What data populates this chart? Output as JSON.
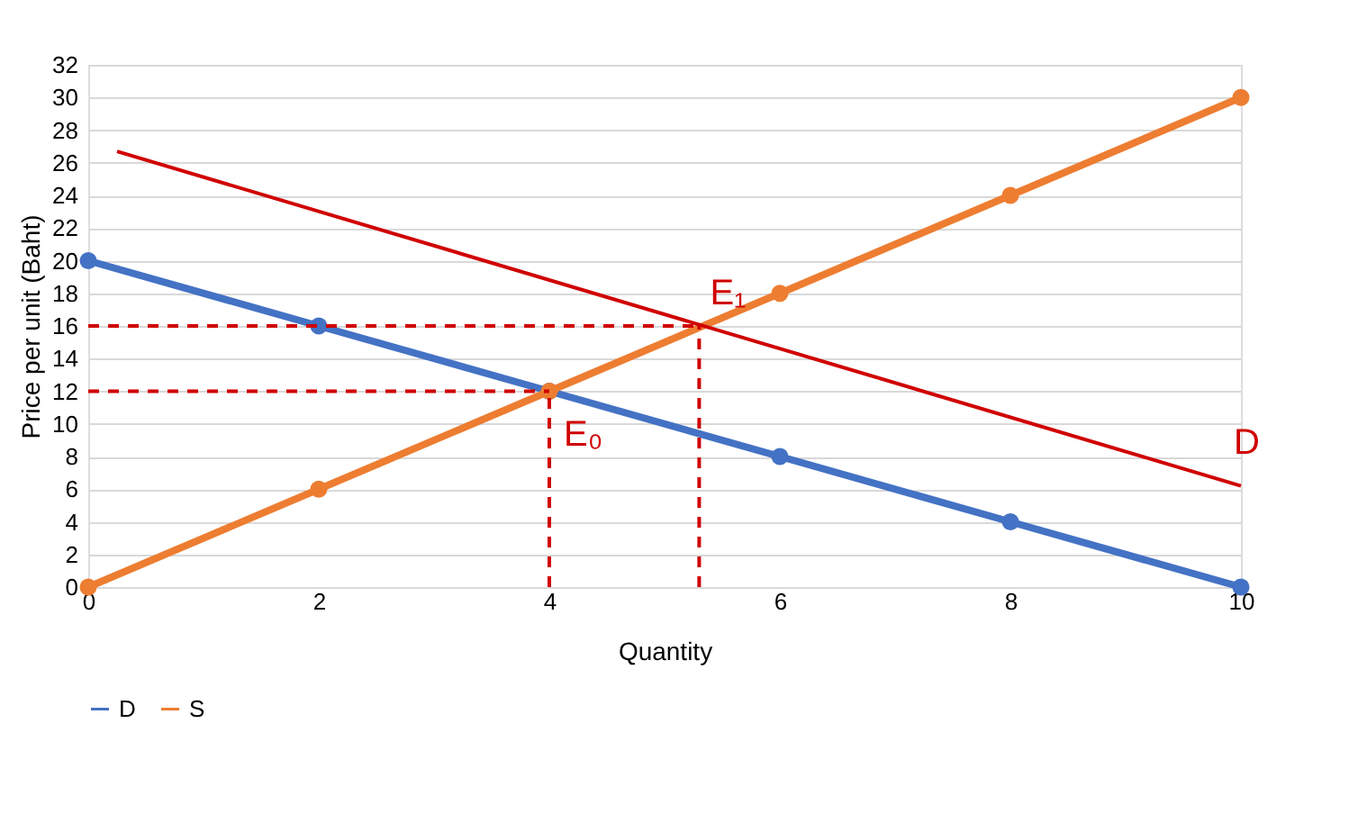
{
  "chart_data": {
    "type": "line",
    "xlabel": "Quantity",
    "ylabel": "Price per unit (Baht)",
    "x": [
      0,
      2,
      4,
      6,
      8,
      10
    ],
    "series": [
      {
        "name": "D",
        "color": "#4472c4",
        "values": [
          20,
          16,
          12,
          8,
          4,
          0
        ],
        "marker": "circle"
      },
      {
        "name": "S",
        "color": "#ed7d31",
        "values": [
          0,
          6,
          12,
          18,
          24,
          30
        ],
        "marker": "circle"
      },
      {
        "color": "#d00000",
        "x": [
          0.25,
          10
        ],
        "values": [
          26.7,
          6.2
        ],
        "marker": "none"
      },
      {
        "color": "#d00000",
        "x": [
          0,
          5.3
        ],
        "values": [
          16,
          16
        ],
        "marker": "none",
        "line_style": "dashed"
      },
      {
        "color": "#d00000",
        "x": [
          0,
          4
        ],
        "values": [
          12,
          12
        ],
        "marker": "none",
        "line_style": "dashed"
      },
      {
        "color": "#d00000",
        "x": [
          4,
          4
        ],
        "values": [
          0,
          12
        ],
        "marker": "none",
        "line_style": "dashed"
      },
      {
        "color": "#d00000",
        "x": [
          5.3,
          5.3
        ],
        "values": [
          0,
          16
        ],
        "marker": "none",
        "line_style": "dashed"
      }
    ],
    "annotations": [
      {
        "text": "E₀",
        "x": 4,
        "y": 12
      },
      {
        "text": "E₁",
        "x": 5.3,
        "y": 16
      },
      {
        "text": "D",
        "x": 10,
        "y": 6.2
      }
    ],
    "xlim": [
      0,
      10
    ],
    "xticks": [
      0,
      2,
      4,
      6,
      8,
      10
    ],
    "ylim": [
      0,
      32
    ],
    "yticks": [
      0,
      2,
      4,
      6,
      8,
      10,
      12,
      14,
      16,
      18,
      20,
      22,
      24,
      26,
      28,
      30,
      32
    ],
    "grid": "y",
    "legend": "bottom",
    "line_style": "solid"
  }
}
